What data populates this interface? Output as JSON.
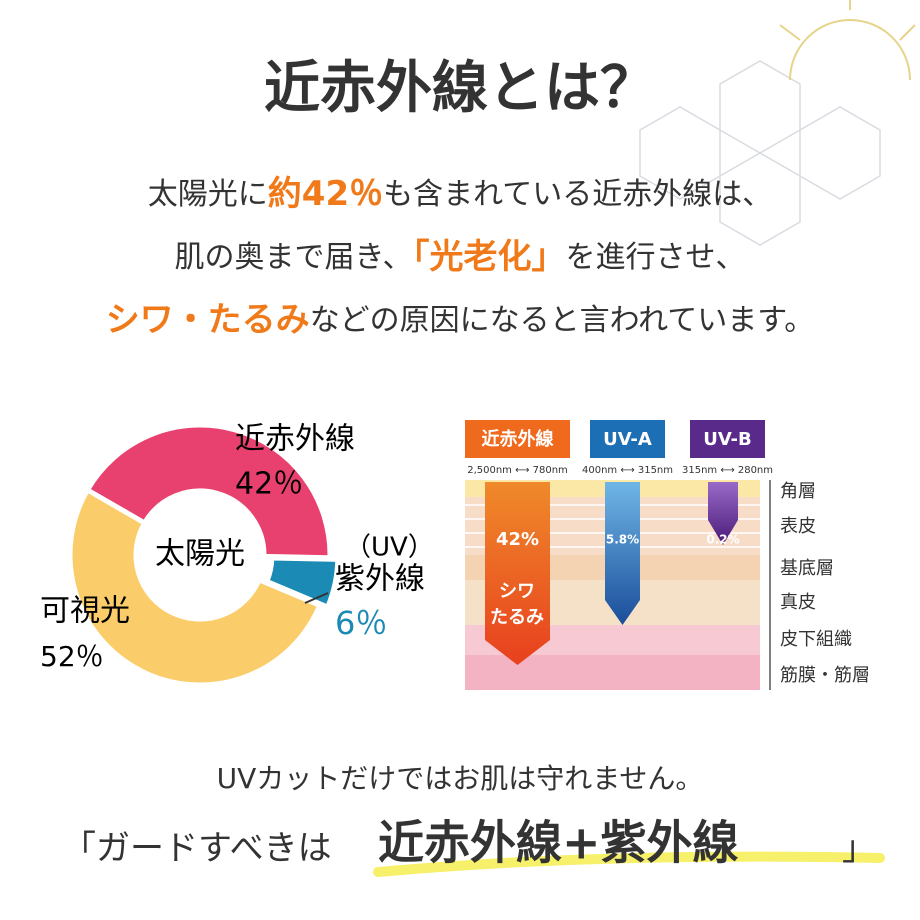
{
  "title": "近赤外線とは？",
  "intro": [
    [
      {
        "text": "太陽光に",
        "accent": false
      },
      {
        "text": "約",
        "accent": true
      },
      {
        "text": "42％",
        "accent": true
      },
      {
        "text": "も含まれている近赤外線は、",
        "accent": false
      }
    ],
    [
      {
        "text": "肌の奥まで届き、",
        "accent": false
      },
      {
        "text": "「光老化」",
        "accent": true
      },
      {
        "text": "を進行させ、",
        "accent": false
      }
    ],
    [
      {
        "text": "シワ・たるみ",
        "accent": true
      },
      {
        "text": "などの原因になると言われています。",
        "accent": false
      }
    ]
  ],
  "chart_data": {
    "type": "donut",
    "center_label": "太陽光",
    "categories": [
      "近赤外線",
      "紫外線",
      "可視光"
    ],
    "values": [
      42,
      6,
      52
    ],
    "value_labels": [
      "42％",
      "6％",
      "52％"
    ],
    "colors": [
      "#e9416f",
      "#1b8bb5",
      "#fbcd6a"
    ],
    "annotations": [
      "（UV）"
    ]
  },
  "skin_diagram": {
    "rays": [
      {
        "name": "近赤外線",
        "range": "2,500nm ⟷ 780nm",
        "percent": "42%",
        "effect": [
          "シワ",
          "たるみ"
        ]
      },
      {
        "name": "UV-A",
        "range": "400nm ⟷ 315nm",
        "percent": "5.8%"
      },
      {
        "name": "UV-B",
        "range": "315nm ⟷ 280nm",
        "percent": "0.2%"
      }
    ],
    "layers": [
      "角層",
      "表皮",
      "基底層",
      "真皮",
      "皮下組織",
      "筋膜・筋層"
    ]
  },
  "footer": {
    "line1": "UVカットだけではお肌は守れません。",
    "open": "「ガードすべきは",
    "emphasis": "近赤外線+紫外線",
    "close": "」"
  }
}
